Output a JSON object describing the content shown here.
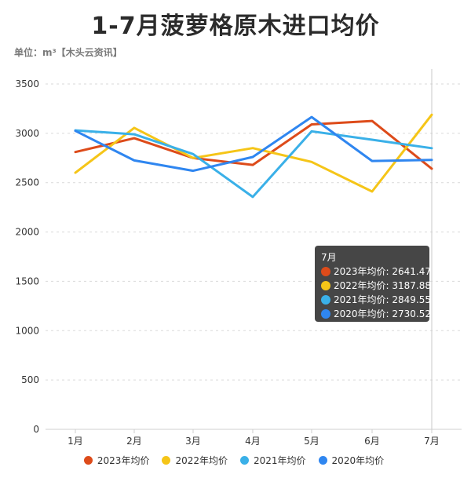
{
  "title": "1-7月菠萝格原木进口均价",
  "unit_label": "单位：m³【木头云资讯】",
  "chart_data": {
    "type": "line",
    "title": "1-7月菠萝格原木进口均价",
    "xlabel": "",
    "ylabel": "单位：m³",
    "categories": [
      "1月",
      "2月",
      "3月",
      "4月",
      "5月",
      "6月",
      "7月"
    ],
    "ylim": [
      0,
      3500
    ],
    "yticks": [
      0,
      500,
      1000,
      1500,
      2000,
      2500,
      3000,
      3500
    ],
    "grid": true,
    "legend_position": "bottom",
    "series": [
      {
        "name": "2023年均价",
        "color": "#dd4b1a",
        "values": [
          2810,
          2950,
          2750,
          2680,
          3090,
          3125,
          2641.47
        ]
      },
      {
        "name": "2022年均价",
        "color": "#f5c518",
        "values": [
          2600,
          3055,
          2750,
          2850,
          2710,
          2410,
          3187.88
        ]
      },
      {
        "name": "2021年均价",
        "color": "#3ab0e8",
        "values": [
          3030,
          2990,
          2790,
          2355,
          3020,
          2935,
          2849.55
        ]
      },
      {
        "name": "2020年均价",
        "color": "#2f86f0",
        "values": [
          3025,
          2725,
          2620,
          2760,
          3165,
          2720,
          2730.52
        ]
      }
    ]
  },
  "tooltip": {
    "header": "7月",
    "rows": [
      {
        "label": "2023年均价: 2641.47",
        "color": "#dd4b1a"
      },
      {
        "label": "2022年均价: 3187.88",
        "color": "#f5c518"
      },
      {
        "label": "2021年均价: 2849.55",
        "color": "#3ab0e8"
      },
      {
        "label": "2020年均价: 2730.52",
        "color": "#2f86f0"
      }
    ]
  }
}
